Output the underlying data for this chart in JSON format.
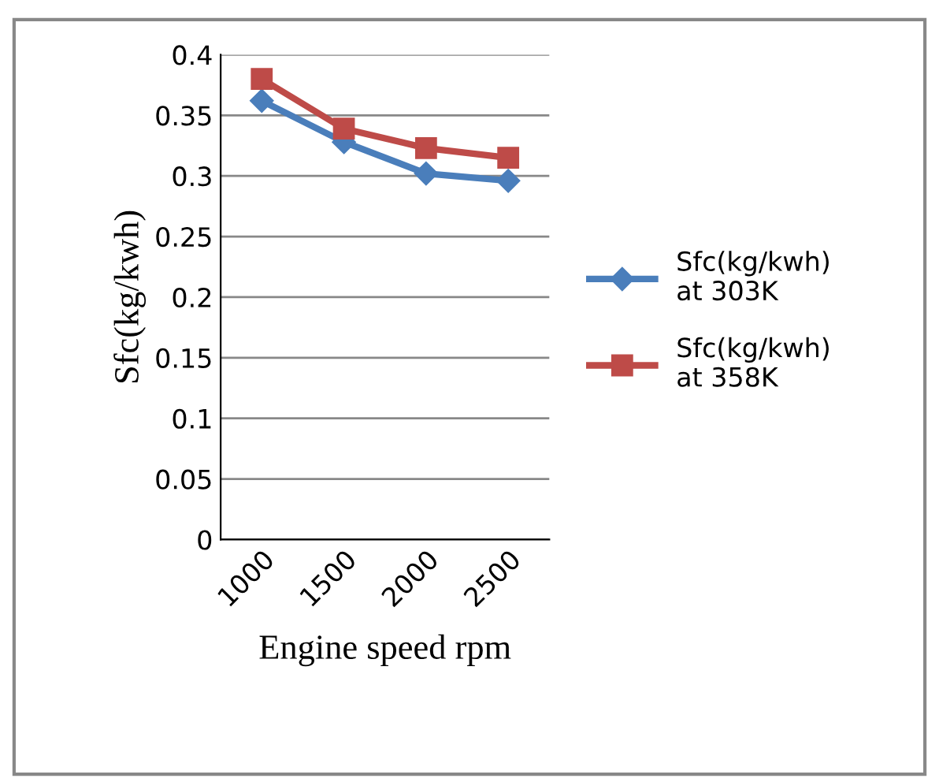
{
  "chart_data": {
    "type": "line",
    "xlabel": "Engine speed rpm",
    "ylabel": "Sfc(kg/kwh)",
    "categories": [
      "1000",
      "1500",
      "2000",
      "2500"
    ],
    "series": [
      {
        "name": "Sfc(kg/kwh)\nat 303K",
        "color": "#4a7ebb",
        "marker": "diamond",
        "values": [
          0.362,
          0.328,
          0.302,
          0.296
        ]
      },
      {
        "name": "Sfc(kg/kwh)\nat 358K",
        "color": "#be4b48",
        "marker": "square",
        "values": [
          0.38,
          0.339,
          0.323,
          0.315
        ]
      }
    ],
    "ylim": [
      0,
      0.4
    ],
    "yticks": [
      {
        "value": 0,
        "label": "0"
      },
      0.05,
      0.1,
      0.15,
      0.2,
      0.25,
      0.3,
      0.35,
      0.4
    ],
    "grid": "y",
    "legend": "right"
  }
}
